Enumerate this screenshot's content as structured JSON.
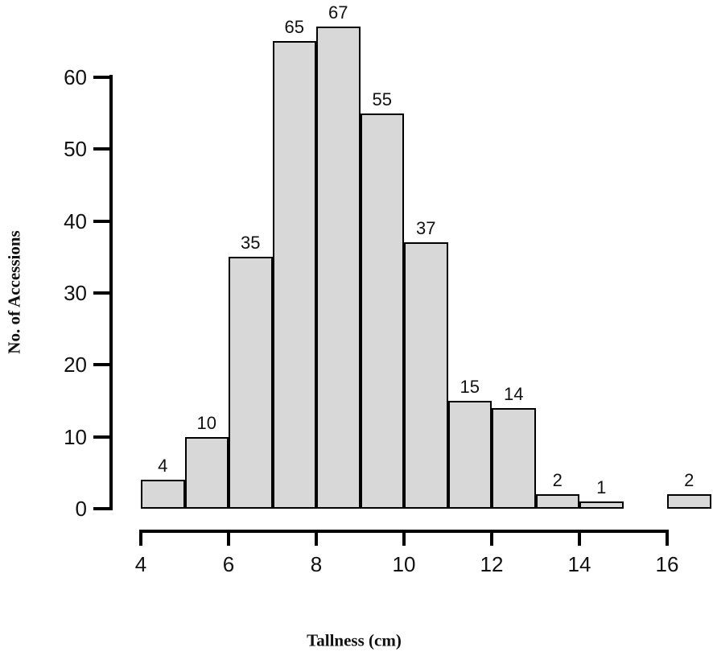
{
  "chart_data": {
    "type": "bar",
    "subtype": "histogram",
    "title": "",
    "xlabel": "Tallness (cm)",
    "ylabel": "No. of Accessions",
    "bins": [
      [
        4,
        5
      ],
      [
        5,
        6
      ],
      [
        6,
        7
      ],
      [
        7,
        8
      ],
      [
        8,
        9
      ],
      [
        9,
        10
      ],
      [
        10,
        11
      ],
      [
        11,
        12
      ],
      [
        12,
        13
      ],
      [
        13,
        14
      ],
      [
        14,
        15
      ],
      [
        15,
        16
      ],
      [
        16,
        17
      ]
    ],
    "values": [
      4,
      10,
      35,
      65,
      67,
      55,
      37,
      15,
      14,
      2,
      1,
      0,
      2
    ],
    "bar_labels": [
      "4",
      "10",
      "35",
      "65",
      "67",
      "55",
      "37",
      "15",
      "14",
      "2",
      "1",
      "",
      "2"
    ],
    "x_ticks": [
      4,
      6,
      8,
      10,
      12,
      14,
      16
    ],
    "y_ticks": [
      0,
      10,
      20,
      30,
      40,
      50,
      60
    ],
    "xlim": [
      4,
      17
    ],
    "ylim": [
      0,
      67
    ],
    "grid": "off",
    "legend": "none",
    "bar_fill": "#d8d8d8",
    "bar_border": "#000000",
    "axis_color": "#000000"
  }
}
